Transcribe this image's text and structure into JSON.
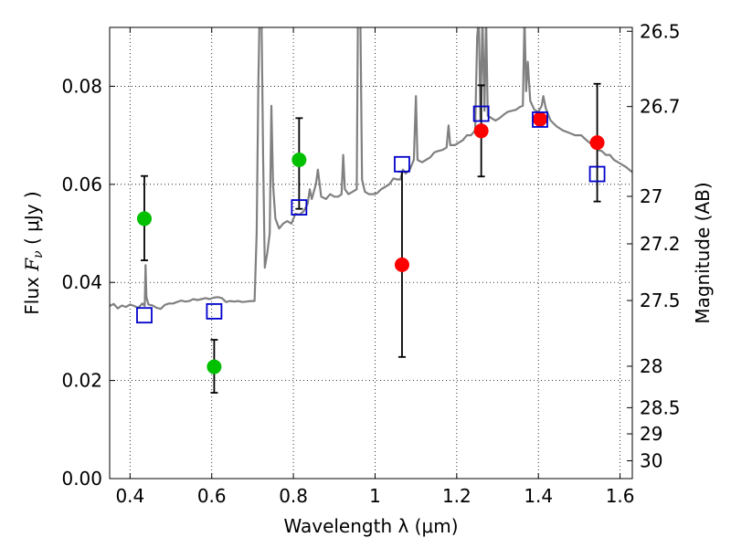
{
  "chart_data": {
    "type": "scatter",
    "xlabel": "Wavelength  λ (μm)",
    "ylabel": "Flux  F_ν  ( μJy )",
    "ylabel_parts": {
      "pre": "Flux  ",
      "sym": "F",
      "sub": "ν",
      "post": "  ( μJy )"
    },
    "y2label": "Magnitude (AB)",
    "xlim": [
      0.35,
      1.63
    ],
    "ylim": [
      0.0,
      0.092
    ],
    "grid": true,
    "grid_style": "dotted",
    "x_ticks": [
      0.4,
      0.6,
      0.8,
      1.0,
      1.2,
      1.4,
      1.6
    ],
    "x_tick_labels": [
      "0.4",
      "0.6",
      "0.8",
      "1",
      "1.2",
      "1.4",
      "1.6"
    ],
    "y_ticks": [
      0.0,
      0.02,
      0.04,
      0.06,
      0.08
    ],
    "y_tick_labels": [
      "0.00",
      "0.02",
      "0.04",
      "0.06",
      "0.08"
    ],
    "y2_ticks": [
      {
        "label": "26.5",
        "mag": 26.5
      },
      {
        "label": "26.7",
        "mag": 26.7
      },
      {
        "label": "27",
        "mag": 27.0
      },
      {
        "label": "27.2",
        "mag": 27.2
      },
      {
        "label": "27.5",
        "mag": 27.5
      },
      {
        "label": "28",
        "mag": 28.0
      },
      {
        "label": "28.5",
        "mag": 28.5
      },
      {
        "label": "29",
        "mag": 29.0
      },
      {
        "label": "30",
        "mag": 30.0
      }
    ],
    "colors": {
      "spectrum": "#808080",
      "green": "#00c000",
      "red": "#ff0000",
      "model_box": "#0000cc",
      "errorbar": "#000000"
    },
    "series": [
      {
        "kind": "measured-optical",
        "marker": "circle",
        "color": "#00c000",
        "points": [
          {
            "x": 0.435,
            "y": 0.053,
            "err_lo": 0.0085,
            "err_hi": 0.0087
          },
          {
            "x": 0.606,
            "y": 0.0228,
            "err_lo": 0.0053,
            "err_hi": 0.0055
          },
          {
            "x": 0.814,
            "y": 0.065,
            "err_lo": 0.01,
            "err_hi": 0.0085
          }
        ]
      },
      {
        "kind": "measured-nir",
        "marker": "circle",
        "color": "#ff0000",
        "points": [
          {
            "x": 1.066,
            "y": 0.0436,
            "err_lo": 0.0188,
            "err_hi": 0.019
          },
          {
            "x": 1.26,
            "y": 0.0709,
            "err_lo": 0.0093,
            "err_hi": 0.0093
          },
          {
            "x": 1.404,
            "y": 0.0733,
            "err_lo": 0.0012,
            "err_hi": 0.0012
          },
          {
            "x": 1.544,
            "y": 0.0685,
            "err_lo": 0.012,
            "err_hi": 0.012
          }
        ]
      },
      {
        "kind": "model-synthetic",
        "marker": "square",
        "color": "#0000cc",
        "points": [
          {
            "x": 0.435,
            "y": 0.0333
          },
          {
            "x": 0.606,
            "y": 0.0341
          },
          {
            "x": 0.814,
            "y": 0.0553
          },
          {
            "x": 1.066,
            "y": 0.0641
          },
          {
            "x": 1.26,
            "y": 0.0744
          },
          {
            "x": 1.404,
            "y": 0.0732
          },
          {
            "x": 1.544,
            "y": 0.0621
          }
        ]
      }
    ],
    "spectrum": [
      [
        0.35,
        0.0352
      ],
      [
        0.36,
        0.0356
      ],
      [
        0.37,
        0.0347
      ],
      [
        0.38,
        0.0353
      ],
      [
        0.39,
        0.035
      ],
      [
        0.4,
        0.0355
      ],
      [
        0.41,
        0.0352
      ],
      [
        0.42,
        0.0348
      ],
      [
        0.43,
        0.0357
      ],
      [
        0.436,
        0.0352
      ],
      [
        0.438,
        0.0435
      ],
      [
        0.44,
        0.037
      ],
      [
        0.445,
        0.0355
      ],
      [
        0.455,
        0.0353
      ],
      [
        0.465,
        0.0348
      ],
      [
        0.475,
        0.0346
      ],
      [
        0.485,
        0.0354
      ],
      [
        0.495,
        0.0357
      ],
      [
        0.505,
        0.0357
      ],
      [
        0.515,
        0.036
      ],
      [
        0.525,
        0.0363
      ],
      [
        0.535,
        0.0361
      ],
      [
        0.545,
        0.0362
      ],
      [
        0.555,
        0.0366
      ],
      [
        0.565,
        0.0364
      ],
      [
        0.575,
        0.0366
      ],
      [
        0.585,
        0.0368
      ],
      [
        0.595,
        0.0366
      ],
      [
        0.605,
        0.0369
      ],
      [
        0.615,
        0.037
      ],
      [
        0.625,
        0.0368
      ],
      [
        0.635,
        0.036
      ],
      [
        0.645,
        0.0362
      ],
      [
        0.655,
        0.0361
      ],
      [
        0.665,
        0.0362
      ],
      [
        0.675,
        0.036
      ],
      [
        0.685,
        0.0361
      ],
      [
        0.695,
        0.0362
      ],
      [
        0.705,
        0.0362
      ],
      [
        0.71,
        0.05
      ],
      [
        0.714,
        0.08
      ],
      [
        0.717,
        0.094
      ],
      [
        0.722,
        0.094
      ],
      [
        0.726,
        0.065
      ],
      [
        0.73,
        0.043
      ],
      [
        0.736,
        0.046
      ],
      [
        0.742,
        0.05
      ],
      [
        0.746,
        0.076
      ],
      [
        0.75,
        0.06
      ],
      [
        0.756,
        0.053
      ],
      [
        0.765,
        0.051
      ],
      [
        0.775,
        0.052
      ],
      [
        0.785,
        0.0525
      ],
      [
        0.795,
        0.052
      ],
      [
        0.805,
        0.054
      ],
      [
        0.815,
        0.0538
      ],
      [
        0.825,
        0.0545
      ],
      [
        0.835,
        0.056
      ],
      [
        0.84,
        0.059
      ],
      [
        0.845,
        0.057
      ],
      [
        0.855,
        0.06
      ],
      [
        0.86,
        0.063
      ],
      [
        0.868,
        0.0575
      ],
      [
        0.88,
        0.057
      ],
      [
        0.89,
        0.058
      ],
      [
        0.9,
        0.0575
      ],
      [
        0.91,
        0.0575
      ],
      [
        0.918,
        0.058
      ],
      [
        0.922,
        0.066
      ],
      [
        0.926,
        0.059
      ],
      [
        0.935,
        0.058
      ],
      [
        0.945,
        0.0585
      ],
      [
        0.955,
        0.059
      ],
      [
        0.958,
        0.094
      ],
      [
        0.964,
        0.094
      ],
      [
        0.968,
        0.061
      ],
      [
        0.975,
        0.0585
      ],
      [
        0.985,
        0.058
      ],
      [
        0.995,
        0.058
      ],
      [
        1.005,
        0.0582
      ],
      [
        1.015,
        0.059
      ],
      [
        1.025,
        0.0595
      ],
      [
        1.035,
        0.06
      ],
      [
        1.045,
        0.0612
      ],
      [
        1.055,
        0.061
      ],
      [
        1.062,
        0.061
      ],
      [
        1.068,
        0.063
      ],
      [
        1.075,
        0.0622
      ],
      [
        1.085,
        0.063
      ],
      [
        1.095,
        0.065
      ],
      [
        1.1,
        0.078
      ],
      [
        1.104,
        0.065
      ],
      [
        1.115,
        0.0645
      ],
      [
        1.125,
        0.065
      ],
      [
        1.135,
        0.0655
      ],
      [
        1.145,
        0.0665
      ],
      [
        1.155,
        0.0668
      ],
      [
        1.165,
        0.067
      ],
      [
        1.175,
        0.0675
      ],
      [
        1.18,
        0.072
      ],
      [
        1.184,
        0.068
      ],
      [
        1.195,
        0.068
      ],
      [
        1.205,
        0.0685
      ],
      [
        1.215,
        0.069
      ],
      [
        1.225,
        0.07
      ],
      [
        1.235,
        0.07
      ],
      [
        1.245,
        0.071
      ],
      [
        1.25,
        0.09
      ],
      [
        1.254,
        0.094
      ],
      [
        1.258,
        0.073
      ],
      [
        1.263,
        0.094
      ],
      [
        1.268,
        0.075
      ],
      [
        1.272,
        0.094
      ],
      [
        1.276,
        0.074
      ],
      [
        1.285,
        0.0735
      ],
      [
        1.295,
        0.073
      ],
      [
        1.305,
        0.0735
      ],
      [
        1.315,
        0.0742
      ],
      [
        1.325,
        0.0748
      ],
      [
        1.335,
        0.075
      ],
      [
        1.345,
        0.0752
      ],
      [
        1.355,
        0.0758
      ],
      [
        1.362,
        0.076
      ],
      [
        1.366,
        0.094
      ],
      [
        1.37,
        0.079
      ],
      [
        1.374,
        0.085
      ],
      [
        1.38,
        0.077
      ],
      [
        1.39,
        0.0752
      ],
      [
        1.4,
        0.0748
      ],
      [
        1.408,
        0.076
      ],
      [
        1.412,
        0.078
      ],
      [
        1.418,
        0.0755
      ],
      [
        1.43,
        0.073
      ],
      [
        1.445,
        0.0718
      ],
      [
        1.46,
        0.071
      ],
      [
        1.475,
        0.0705
      ],
      [
        1.49,
        0.07
      ],
      [
        1.505,
        0.07
      ],
      [
        1.515,
        0.0692
      ],
      [
        1.525,
        0.0685
      ],
      [
        1.535,
        0.068
      ],
      [
        1.545,
        0.067
      ],
      [
        1.555,
        0.0668
      ],
      [
        1.565,
        0.066
      ],
      [
        1.575,
        0.066
      ],
      [
        1.585,
        0.065
      ],
      [
        1.595,
        0.0645
      ],
      [
        1.605,
        0.064
      ],
      [
        1.615,
        0.0635
      ],
      [
        1.625,
        0.0628
      ],
      [
        1.63,
        0.0625
      ]
    ]
  }
}
